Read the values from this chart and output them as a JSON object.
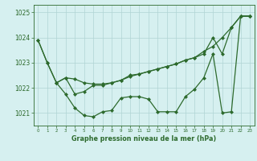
{
  "series1": {
    "x": [
      0,
      1,
      2,
      3,
      4,
      5,
      6,
      7,
      8,
      9,
      10,
      11,
      12,
      13,
      14,
      15,
      16,
      17,
      18,
      19,
      20,
      21,
      22,
      23
    ],
    "y": [
      1023.9,
      1023.0,
      1022.2,
      1021.75,
      1021.2,
      1020.9,
      1020.85,
      1021.05,
      1021.1,
      1021.6,
      1021.65,
      1021.65,
      1021.55,
      1021.05,
      1021.05,
      1021.05,
      1021.65,
      1021.95,
      1022.4,
      1023.35,
      1021.0,
      1021.05,
      1024.85,
      1024.85
    ]
  },
  "series2": {
    "x": [
      0,
      1,
      2,
      3,
      4,
      5,
      6,
      7,
      8,
      9,
      10,
      11,
      12,
      13,
      14,
      15,
      16,
      17,
      18,
      19,
      20,
      21,
      22,
      23
    ],
    "y": [
      1023.9,
      1023.0,
      1022.2,
      1022.4,
      1022.35,
      1022.2,
      1022.15,
      1022.15,
      1022.2,
      1022.3,
      1022.45,
      1022.55,
      1022.65,
      1022.75,
      1022.85,
      1022.95,
      1023.1,
      1023.2,
      1023.45,
      1023.65,
      1024.0,
      1024.4,
      1024.85,
      1024.85
    ]
  },
  "series3": {
    "x": [
      2,
      3,
      4,
      5,
      6,
      7,
      8,
      9,
      10,
      11,
      12,
      13,
      14,
      15,
      16,
      17,
      18,
      19,
      20,
      21,
      22,
      23
    ],
    "y": [
      1022.2,
      1022.4,
      1021.75,
      1021.85,
      1022.1,
      1022.1,
      1022.2,
      1022.3,
      1022.5,
      1022.55,
      1022.65,
      1022.75,
      1022.85,
      1022.95,
      1023.1,
      1023.2,
      1023.35,
      1024.0,
      1023.35,
      1024.4,
      1024.85,
      1024.85
    ]
  },
  "ylim": [
    1020.5,
    1025.3
  ],
  "xlim": [
    -0.5,
    23.5
  ],
  "yticks": [
    1021,
    1022,
    1023,
    1024,
    1025
  ],
  "xticks": [
    0,
    1,
    2,
    3,
    4,
    5,
    6,
    7,
    8,
    9,
    10,
    11,
    12,
    13,
    14,
    15,
    16,
    17,
    18,
    19,
    20,
    21,
    22,
    23
  ],
  "line_color": "#2d6a2d",
  "bg_color": "#d6f0f0",
  "grid_color": "#b0d4d4",
  "xlabel": "Graphe pression niveau de la mer (hPa)",
  "marker": "D",
  "markersize": 2.0,
  "linewidth": 0.9
}
